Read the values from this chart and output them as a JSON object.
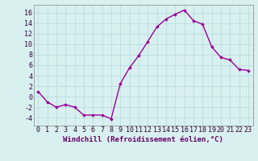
{
  "x": [
    0,
    1,
    2,
    3,
    4,
    5,
    6,
    7,
    8,
    9,
    10,
    11,
    12,
    13,
    14,
    15,
    16,
    17,
    18,
    19,
    20,
    21,
    22,
    23
  ],
  "y": [
    1,
    -1,
    -2,
    -1.5,
    -2,
    -3.5,
    -3.5,
    -3.5,
    -4.2,
    2.5,
    5.5,
    7.8,
    10.5,
    13.3,
    14.8,
    15.7,
    16.5,
    14.5,
    13.8,
    9.5,
    7.5,
    7.0,
    5.2,
    5.0
  ],
  "line_color": "#990099",
  "marker": "D",
  "marker_size": 1.8,
  "bg_color": "#d8f0f0",
  "grid_color": "#bbdddd",
  "xlabel": "Windchill (Refroidissement éolien,°C)",
  "xlabel_fontsize": 6.5,
  "tick_fontsize": 6.0,
  "ylim": [
    -5.5,
    17.5
  ],
  "yticks": [
    -4,
    -2,
    0,
    2,
    4,
    6,
    8,
    10,
    12,
    14,
    16
  ],
  "xlim": [
    -0.5,
    23.5
  ],
  "linewidth": 1.0
}
